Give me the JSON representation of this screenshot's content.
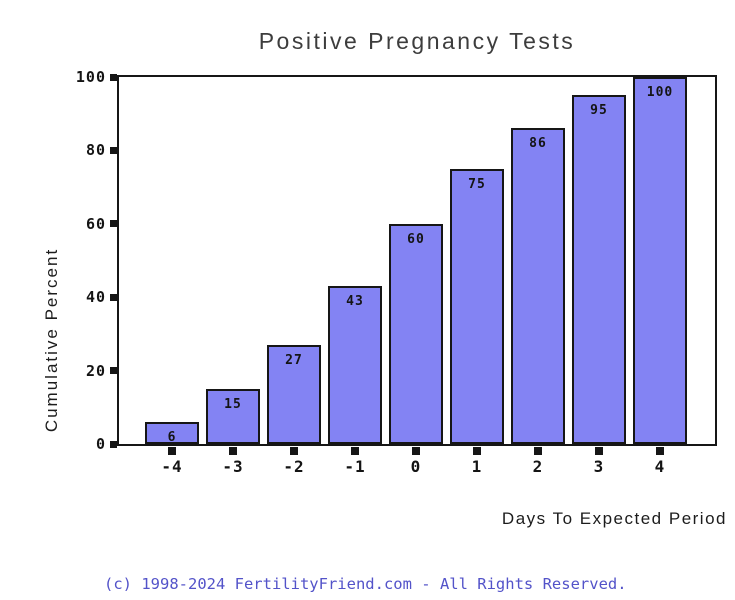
{
  "title": "Positive Pregnancy Tests",
  "footer": {
    "copyright": "(c) 1998-2024 FertilityFriend.com - All Rights Reserved."
  },
  "chart_data": {
    "type": "bar",
    "title": "Positive Pregnancy Tests",
    "xlabel": "Days To Expected Period",
    "ylabel": "Cumulative Percent",
    "categories": [
      "-4",
      "-3",
      "-2",
      "-1",
      "0",
      "1",
      "2",
      "3",
      "4"
    ],
    "values": [
      6,
      15,
      27,
      43,
      60,
      75,
      86,
      95,
      100
    ],
    "ylim": [
      0,
      100
    ],
    "yticks": [
      0,
      20,
      40,
      60,
      80,
      100
    ],
    "value_labels_shown": true,
    "grid": false,
    "legend_position": "none",
    "colors": {
      "bar_fill": "#8383f3",
      "bar_border": "#161616",
      "axis": "#161616",
      "title_text": "#3d3d3d",
      "tick_text": "#141414",
      "copyright_text": "#5353c9"
    }
  }
}
